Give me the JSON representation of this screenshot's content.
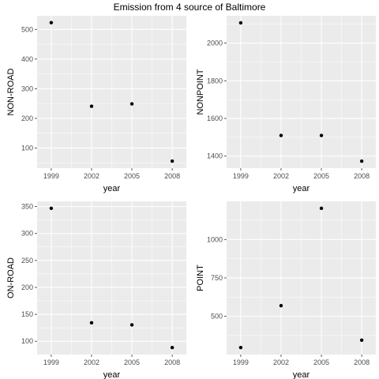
{
  "figure": {
    "title": "Emission from 4 source of Baltimore",
    "colors": {
      "panel": "#ebebeb",
      "grid_major": "#ffffff",
      "point": "#000000",
      "tick_text": "#4d4d4d"
    }
  },
  "chart_data": [
    {
      "type": "scatter",
      "title": "",
      "xlabel": "year",
      "ylabel": "NON-ROAD",
      "x": [
        1999,
        2002,
        2005,
        2008
      ],
      "x_ticks": [
        "1999",
        "2002",
        "2005",
        "2008"
      ],
      "y": [
        522.9,
        241.0,
        248.9,
        55.8
      ],
      "y_ticks": [
        100,
        200,
        300,
        400,
        500
      ],
      "xlim": [
        1997.95,
        2009.05
      ],
      "ylim": [
        32,
        546
      ],
      "grid": true,
      "legend": "none"
    },
    {
      "type": "scatter",
      "title": "",
      "xlabel": "year",
      "ylabel": "NONPOINT",
      "x": [
        1999,
        2002,
        2005,
        2008
      ],
      "x_ticks": [
        "1999",
        "2002",
        "2005",
        "2008"
      ],
      "y": [
        2107.6,
        1509.5,
        1509.5,
        1373.2
      ],
      "y_ticks": [
        1400,
        1600,
        1800,
        2000
      ],
      "xlim": [
        1997.95,
        2009.05
      ],
      "ylim": [
        1336,
        2145
      ],
      "grid": true,
      "legend": "none"
    },
    {
      "type": "scatter",
      "title": "",
      "xlabel": "year",
      "ylabel": "ON-ROAD",
      "x": [
        1999,
        2002,
        2005,
        2008
      ],
      "x_ticks": [
        "1999",
        "2002",
        "2005",
        "2008"
      ],
      "y": [
        346.8,
        134.3,
        130.4,
        88.3
      ],
      "y_ticks": [
        100,
        150,
        200,
        250,
        300,
        350
      ],
      "xlim": [
        1997.95,
        2009.05
      ],
      "ylim": [
        75.4,
        359.7
      ],
      "grid": true,
      "legend": "none"
    },
    {
      "type": "scatter",
      "title": "",
      "xlabel": "year",
      "ylabel": "POINT",
      "x": [
        1999,
        2002,
        2005,
        2008
      ],
      "x_ticks": [
        "1999",
        "2002",
        "2005",
        "2008"
      ],
      "y": [
        296.8,
        569.3,
        1202.5,
        344.98
      ],
      "y_ticks": [
        500,
        750,
        1000
      ],
      "xlim": [
        1997.95,
        2009.05
      ],
      "ylim": [
        251.5,
        1248
      ],
      "grid": true,
      "legend": "none"
    }
  ]
}
